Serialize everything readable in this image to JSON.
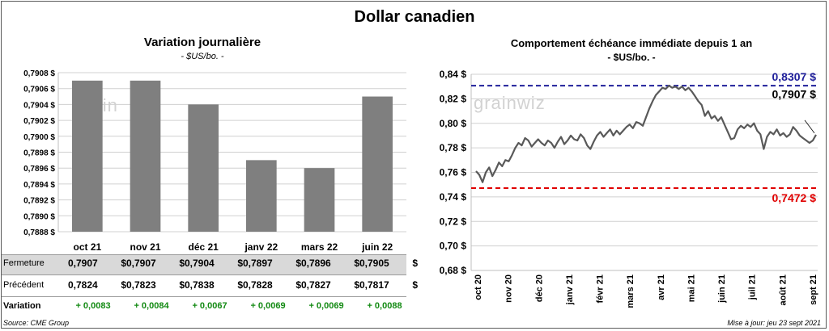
{
  "title": "Dollar canadien",
  "left_panel": {
    "title": "Variation  journalière",
    "subtitle": "- $US/bo. -",
    "watermark": "grain",
    "table": {
      "rows": [
        {
          "label": "Fermeture",
          "values": [
            "0,7907",
            "0,7907",
            "0,7904",
            "0,7897",
            "0,7896",
            "0,7905"
          ],
          "unit": "$"
        },
        {
          "label": "Précédent",
          "values": [
            "0,7824",
            "0,7823",
            "0,7838",
            "0,7828",
            "0,7827",
            "0,7817"
          ],
          "unit": "$"
        },
        {
          "label": "Variation",
          "values": [
            "+ 0,0083",
            "+ 0,0084",
            "+ 0,0067",
            "+ 0,0069",
            "+ 0,0069",
            "+ 0,0088"
          ]
        }
      ]
    }
  },
  "right_panel": {
    "title": "Comportement échéance immédiate depuis 1 an",
    "subtitle": "- $US/bo. -",
    "watermark": "grainwiz",
    "high_label": "0,8307 $",
    "low_label": "0,7472 $",
    "last_label": "0,7907 $"
  },
  "footer": {
    "source": "Source: CME Group",
    "updated": "Mise à jour: jeu 23 sept 2021"
  },
  "colors": {
    "bar": "#7f7f7f",
    "line": "#595959",
    "high": "#1f1f9a",
    "low": "#e00000",
    "positive": "#138a13",
    "band": "#d9d9d9"
  },
  "chart_data": [
    {
      "type": "bar",
      "categories": [
        "oct 21",
        "nov 21",
        "déc 21",
        "janv 22",
        "mars 22",
        "juin 22"
      ],
      "values": [
        0.7907,
        0.7907,
        0.7904,
        0.7897,
        0.7896,
        0.7905
      ],
      "ylim": [
        0.7888,
        0.7908
      ],
      "yticks": [
        0.7888,
        0.789,
        0.7892,
        0.7894,
        0.7896,
        0.7898,
        0.79,
        0.7902,
        0.7904,
        0.7906,
        0.7908
      ],
      "ytick_labels": [
        "0,7888 $",
        "0,7890 $",
        "0,7892 $",
        "0,7894 $",
        "0,7896 $",
        "0,7898 $",
        "0,7900 $",
        "0,7902 $",
        "0,7904 $",
        "0,7906 $",
        "0,7908 $"
      ],
      "grid": true
    },
    {
      "type": "line",
      "x_tick_labels": [
        "oct 20",
        "nov 20",
        "déc 20",
        "janv 21",
        "févr 21",
        "mars 21",
        "avr 21",
        "mai 21",
        "juin 21",
        "juil 21",
        "août 21",
        "sept 21"
      ],
      "ylim": [
        0.68,
        0.84
      ],
      "yticks": [
        0.68,
        0.7,
        0.72,
        0.74,
        0.76,
        0.78,
        0.8,
        0.82,
        0.84
      ],
      "ytick_labels": [
        "0,68 $",
        "0,70 $",
        "0,72 $",
        "0,74 $",
        "0,76 $",
        "0,78 $",
        "0,80 $",
        "0,82 $",
        "0,84 $"
      ],
      "reference_lines": [
        0.8307,
        0.7472
      ],
      "series": [
        {
          "values": [
            0.761,
            0.758,
            0.752,
            0.76,
            0.764,
            0.757,
            0.762,
            0.768,
            0.765,
            0.77,
            0.769,
            0.774,
            0.78,
            0.784,
            0.782,
            0.788,
            0.786,
            0.781,
            0.784,
            0.787,
            0.784,
            0.782,
            0.786,
            0.784,
            0.78,
            0.785,
            0.789,
            0.783,
            0.786,
            0.79,
            0.787,
            0.786,
            0.791,
            0.788,
            0.782,
            0.779,
            0.785,
            0.79,
            0.793,
            0.789,
            0.792,
            0.795,
            0.79,
            0.794,
            0.791,
            0.794,
            0.797,
            0.799,
            0.796,
            0.801,
            0.8,
            0.798,
            0.805,
            0.812,
            0.818,
            0.823,
            0.826,
            0.829,
            0.828,
            0.8307,
            0.829,
            0.83,
            0.828,
            0.83,
            0.827,
            0.829,
            0.826,
            0.822,
            0.818,
            0.815,
            0.806,
            0.81,
            0.804,
            0.806,
            0.802,
            0.805,
            0.799,
            0.793,
            0.787,
            0.788,
            0.795,
            0.798,
            0.796,
            0.799,
            0.797,
            0.8,
            0.794,
            0.791,
            0.779,
            0.789,
            0.793,
            0.791,
            0.795,
            0.79,
            0.792,
            0.789,
            0.791,
            0.797,
            0.794,
            0.79,
            0.788,
            0.786,
            0.784,
            0.786,
            0.7907
          ]
        }
      ]
    }
  ]
}
